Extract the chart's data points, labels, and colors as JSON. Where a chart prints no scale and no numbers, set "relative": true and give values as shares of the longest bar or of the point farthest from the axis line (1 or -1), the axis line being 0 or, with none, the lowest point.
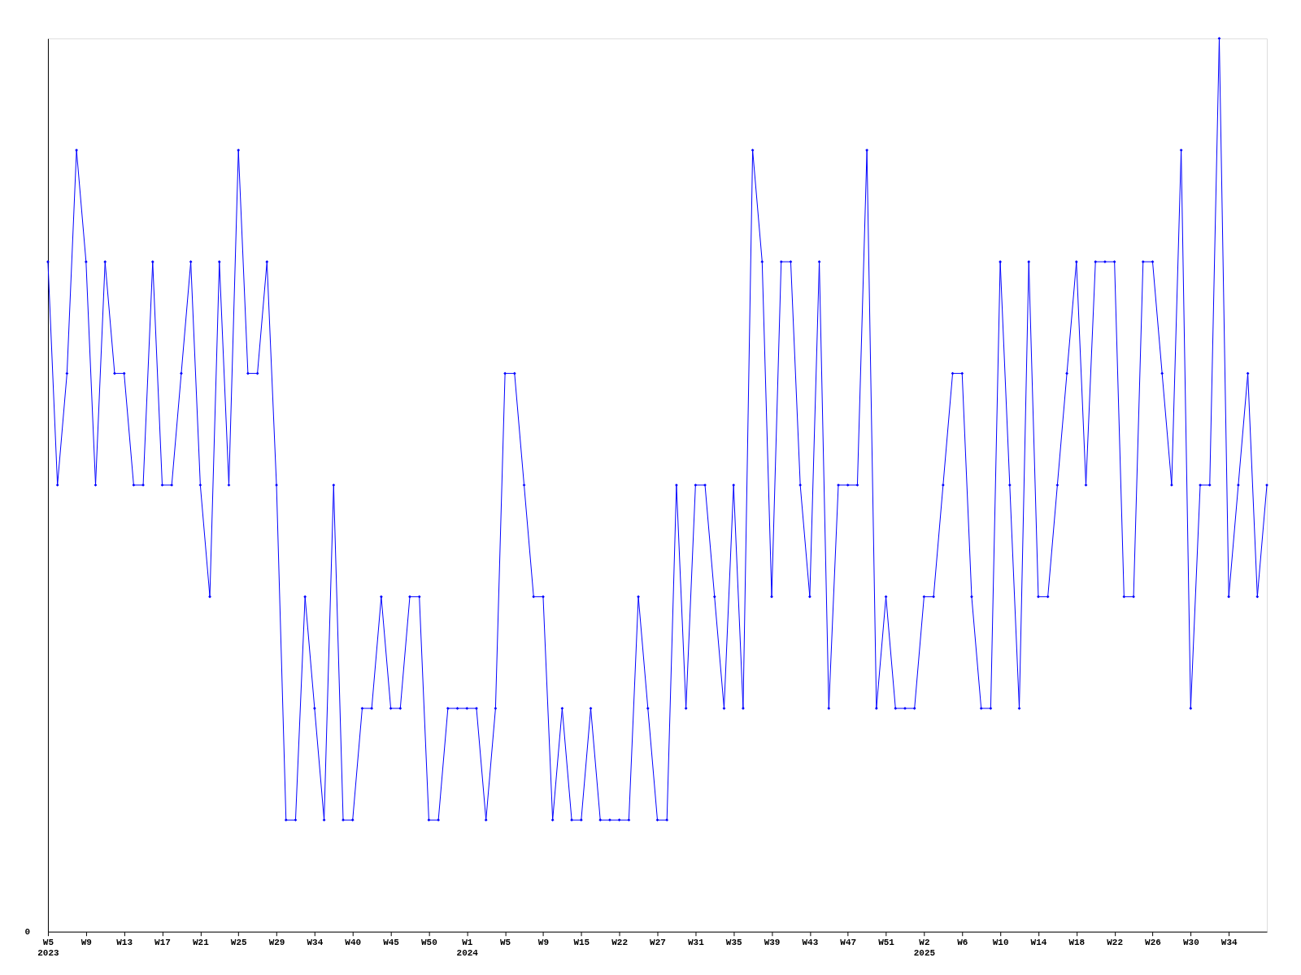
{
  "chart_data": {
    "type": "line",
    "relative": true,
    "marker": "diamond",
    "line_style": "solid",
    "grid": false,
    "annotations": [
      "0"
    ],
    "categories": [
      "W5\n2023",
      null,
      null,
      null,
      "W9",
      null,
      null,
      null,
      "W13",
      null,
      null,
      null,
      "W17",
      null,
      null,
      null,
      "W21",
      null,
      null,
      null,
      "W25",
      null,
      null,
      null,
      "W29",
      null,
      null,
      null,
      "W34",
      null,
      null,
      null,
      "W40",
      null,
      null,
      null,
      "W45",
      null,
      null,
      null,
      "W50",
      null,
      null,
      null,
      "W1\n2024",
      null,
      null,
      null,
      "W5",
      null,
      null,
      null,
      "W9",
      null,
      null,
      null,
      "W15",
      null,
      null,
      null,
      "W22",
      null,
      null,
      null,
      "W27",
      null,
      null,
      null,
      "W31",
      null,
      null,
      null,
      "W35",
      null,
      null,
      null,
      "W39",
      null,
      null,
      null,
      "W43",
      null,
      null,
      null,
      "W47",
      null,
      null,
      null,
      "W51",
      null,
      null,
      null,
      "W2\n2025",
      null,
      null,
      null,
      "W6",
      null,
      null,
      null,
      "W10",
      null,
      null,
      null,
      "W14",
      null,
      null,
      null,
      "W18",
      null,
      null,
      null,
      "W22",
      null,
      null,
      null,
      "W26",
      null,
      null,
      null,
      "W30",
      null,
      null,
      null,
      "W34",
      null,
      null,
      null,
      null
    ],
    "series": [
      {
        "color": "#0000ff",
        "values": [
          0.75,
          0.5,
          0.625,
          0.875,
          0.75,
          0.5,
          0.75,
          0.625,
          0.625,
          0.5,
          0.5,
          0.75,
          0.5,
          0.5,
          0.625,
          0.75,
          0.5,
          0.375,
          0.75,
          0.5,
          0.875,
          0.625,
          0.625,
          0.75,
          0.5,
          0.125,
          0.125,
          0.375,
          0.25,
          0.125,
          0.5,
          0.125,
          0.125,
          0.25,
          0.25,
          0.375,
          0.25,
          0.25,
          0.375,
          0.375,
          0.125,
          0.125,
          0.25,
          0.25,
          0.25,
          0.25,
          0.125,
          0.25,
          0.625,
          0.625,
          0.5,
          0.375,
          0.375,
          0.125,
          0.25,
          0.125,
          0.125,
          0.25,
          0.125,
          0.125,
          0.125,
          0.125,
          0.375,
          0.25,
          0.125,
          0.125,
          0.5,
          0.25,
          0.5,
          0.5,
          0.375,
          0.25,
          0.5,
          0.25,
          0.875,
          0.75,
          0.375,
          0.75,
          0.75,
          0.5,
          0.375,
          0.75,
          0.25,
          0.5,
          0.5,
          0.5,
          0.875,
          0.25,
          0.375,
          0.25,
          0.25,
          0.25,
          0.375,
          0.375,
          0.5,
          0.625,
          0.625,
          0.375,
          0.25,
          0.25,
          0.75,
          0.5,
          0.25,
          0.75,
          0.375,
          0.375,
          0.5,
          0.625,
          0.75,
          0.5,
          0.75,
          0.75,
          0.75,
          0.375,
          0.375,
          0.75,
          0.75,
          0.625,
          0.5,
          0.875,
          0.25,
          0.5,
          0.5,
          1,
          0.375,
          0.5,
          0.625,
          0.375,
          0.5
        ]
      }
    ]
  }
}
